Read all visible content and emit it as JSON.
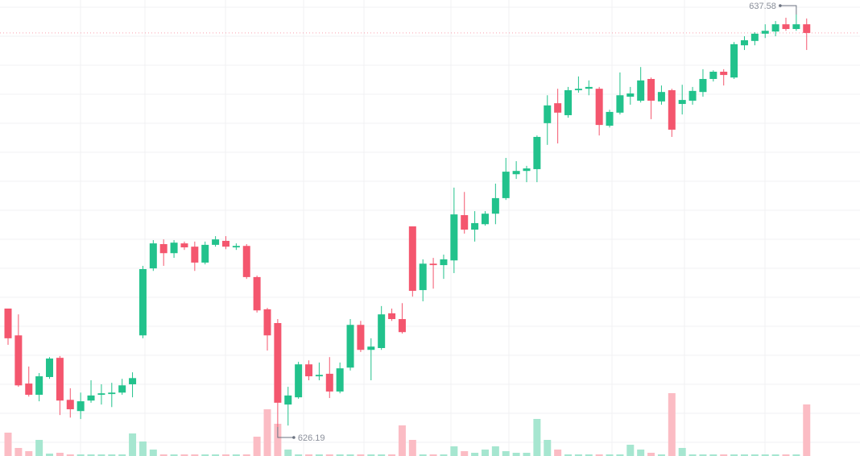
{
  "chart_data": {
    "type": "candlestick",
    "open": [
      629.46,
      628.72,
      627.39,
      627.08,
      627.57,
      628.1,
      626.94,
      626.63,
      626.92,
      627.08,
      627.1,
      627.14,
      627.37,
      628.72,
      630.57,
      631.24,
      630.99,
      631.26,
      631.17,
      630.73,
      631.22,
      631.33,
      631.15,
      631.19,
      630.33,
      629.44,
      629.06,
      626.81,
      627.01,
      627.92,
      627.59,
      627.66,
      627.17,
      627.83,
      629.01,
      628.32,
      628.37,
      629.33,
      629.17,
      631.73,
      629.97,
      630.7,
      630.66,
      630.79,
      632.04,
      631.64,
      631.79,
      632.08,
      632.51,
      633.17,
      633.26,
      633.31,
      634.58,
      635.13,
      634.8,
      635.49,
      635.53,
      635.53,
      634.51,
      634.87,
      635.31,
      635.2,
      635.8,
      635.18,
      635.49,
      635.11,
      635.2,
      635.44,
      635.8,
      636.0,
      635.84,
      636.73,
      636.85,
      637.05,
      637.11,
      637.31,
      637.18,
      637.31
    ],
    "high": [
      629.46,
      629.3,
      627.86,
      627.68,
      628.12,
      628.15,
      627.26,
      627.14,
      627.48,
      627.37,
      627.41,
      627.52,
      627.7,
      630.64,
      631.35,
      631.37,
      631.35,
      631.31,
      631.31,
      631.31,
      631.46,
      631.46,
      631.26,
      631.24,
      630.37,
      629.48,
      629.17,
      627.3,
      627.99,
      628.03,
      627.97,
      628.12,
      627.97,
      629.17,
      629.12,
      628.64,
      629.53,
      629.46,
      629.61,
      631.73,
      630.82,
      630.86,
      630.95,
      632.8,
      632.68,
      632.15,
      632.15,
      632.91,
      633.62,
      633.53,
      633.4,
      634.24,
      635.35,
      635.53,
      635.58,
      635.87,
      635.76,
      635.58,
      634.95,
      635.98,
      635.58,
      636.13,
      635.84,
      635.62,
      635.53,
      635.64,
      635.58,
      636.07,
      636.04,
      636.07,
      636.82,
      636.98,
      637.09,
      637.31,
      637.4,
      637.49,
      637.58,
      637.47
    ],
    "low": [
      628.46,
      627.3,
      627.03,
      626.9,
      627.52,
      626.52,
      626.45,
      626.41,
      626.86,
      626.81,
      626.74,
      627.08,
      627.01,
      628.64,
      630.5,
      630.64,
      630.86,
      631.08,
      630.5,
      630.68,
      631.17,
      631.1,
      631.08,
      630.28,
      629.35,
      628.3,
      626.19,
      626.23,
      626.97,
      627.48,
      627.48,
      626.99,
      627.12,
      627.75,
      628.26,
      627.48,
      628.32,
      629.12,
      628.77,
      629.79,
      629.66,
      630.01,
      630.28,
      630.44,
      631.53,
      631.31,
      631.75,
      631.79,
      632.46,
      633.04,
      632.95,
      632.95,
      633.98,
      634.02,
      634.73,
      635.42,
      635.35,
      634.24,
      634.46,
      634.82,
      635.09,
      635.15,
      634.69,
      635.09,
      634.2,
      634.82,
      635.09,
      635.31,
      635.73,
      635.62,
      635.8,
      636.6,
      636.73,
      636.93,
      636.98,
      637.13,
      637.13,
      636.6
    ],
    "close": [
      628.64,
      627.34,
      627.08,
      627.59,
      628.08,
      626.92,
      626.68,
      626.9,
      627.06,
      627.12,
      627.14,
      627.34,
      627.54,
      630.55,
      631.26,
      630.99,
      631.28,
      631.15,
      630.73,
      631.22,
      631.37,
      631.17,
      631.19,
      630.33,
      629.41,
      628.72,
      626.86,
      627.06,
      627.92,
      627.59,
      627.63,
      627.17,
      627.81,
      629.01,
      628.32,
      628.41,
      629.3,
      629.17,
      628.81,
      629.95,
      630.7,
      630.66,
      630.82,
      632.06,
      631.64,
      631.82,
      632.08,
      632.51,
      633.24,
      633.26,
      633.33,
      634.2,
      635.07,
      634.87,
      635.49,
      635.53,
      635.58,
      634.53,
      634.89,
      635.35,
      635.4,
      635.76,
      635.2,
      635.44,
      634.4,
      635.22,
      635.47,
      635.8,
      636.0,
      635.91,
      636.76,
      636.87,
      637.05,
      637.13,
      637.31,
      637.18,
      637.31,
      637.07
    ],
    "volume": [
      29,
      10,
      6,
      20,
      3,
      4,
      2,
      2,
      2,
      2,
      2,
      2,
      28,
      18,
      8,
      2,
      2,
      2,
      2,
      2,
      2,
      2,
      2,
      2,
      24,
      58,
      40,
      8,
      2,
      2,
      2,
      2,
      2,
      2,
      2,
      2,
      2,
      2,
      38,
      20,
      2,
      2,
      2,
      12,
      6,
      4,
      8,
      12,
      6,
      4,
      4,
      46,
      20,
      8,
      2,
      2,
      2,
      2,
      2,
      2,
      14,
      8,
      4,
      2,
      78,
      10,
      2,
      2,
      2,
      2,
      2,
      2,
      2,
      2,
      2,
      2,
      2,
      64
    ],
    "up_color": "#22c28c",
    "down_color": "#f4566e",
    "up_volume_color": "#a6e6d0",
    "down_volume_color": "#fbbcc4",
    "max_label": 637.58,
    "min_label": 626.19,
    "grid": true
  }
}
